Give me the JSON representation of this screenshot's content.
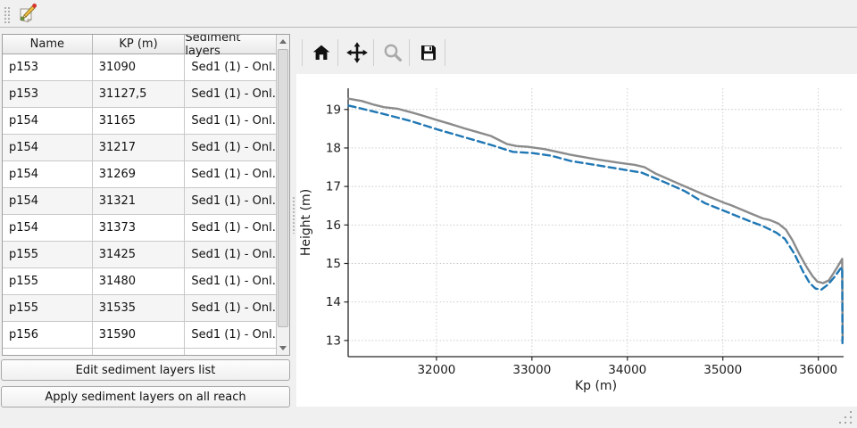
{
  "top_toolbar": {
    "edit_tool_icon": "edit-sediment-layers-icon"
  },
  "left_panel": {
    "table": {
      "columns": [
        "Name",
        "KP (m)",
        "Sediment layers"
      ],
      "rows": [
        {
          "name": "p153",
          "kp": "31090",
          "sediment": "Sed1 (1) - Onl..."
        },
        {
          "name": "p153",
          "kp": "31127,5",
          "sediment": "Sed1 (1) - Onl..."
        },
        {
          "name": "p154",
          "kp": "31165",
          "sediment": "Sed1 (1) - Onl..."
        },
        {
          "name": "p154",
          "kp": "31217",
          "sediment": "Sed1 (1) - Onl..."
        },
        {
          "name": "p154",
          "kp": "31269",
          "sediment": "Sed1 (1) - Onl..."
        },
        {
          "name": "p154",
          "kp": "31321",
          "sediment": "Sed1 (1) - Onl..."
        },
        {
          "name": "p154",
          "kp": "31373",
          "sediment": "Sed1 (1) - Onl..."
        },
        {
          "name": "p155",
          "kp": "31425",
          "sediment": "Sed1 (1) - Onl..."
        },
        {
          "name": "p155",
          "kp": "31480",
          "sediment": "Sed1 (1) - Onl..."
        },
        {
          "name": "p155",
          "kp": "31535",
          "sediment": "Sed1 (1) - Onl..."
        },
        {
          "name": "p156",
          "kp": "31590",
          "sediment": "Sed1 (1) - Onl..."
        }
      ]
    },
    "buttons": {
      "edit": "Edit sediment layers list",
      "apply": "Apply sediment layers on all reach"
    }
  },
  "plot_toolbar": {
    "icons": [
      "home-icon",
      "pan-icon",
      "zoom-icon",
      "save-icon"
    ],
    "disabled_icon": "zoom-icon"
  },
  "chart_data": {
    "type": "line",
    "title": "",
    "xlabel": "Kp (m)",
    "ylabel": "Height (m)",
    "xlim": [
      31075,
      36265
    ],
    "ylim": [
      12.58,
      19.55
    ],
    "xticks": [
      32000,
      33000,
      34000,
      35000,
      36000
    ],
    "yticks": [
      13,
      14,
      15,
      16,
      17,
      18,
      19
    ],
    "grid": true,
    "legend": false,
    "colors": {
      "series1": "#8b8b8b",
      "series2": "#1f77b4",
      "grid": "#c6c6c6",
      "spine": "#262626"
    },
    "series": [
      {
        "name": "height-solid-gray",
        "style": "solid",
        "color": "#8b8b8b",
        "x": [
          31080,
          31220,
          31350,
          31450,
          31590,
          31730,
          31870,
          32010,
          32150,
          32290,
          32430,
          32570,
          32740,
          32840,
          32950,
          33130,
          33410,
          33690,
          33930,
          34080,
          34180,
          34300,
          34530,
          34810,
          35020,
          35080,
          35280,
          35420,
          35490,
          35580,
          35660,
          35730,
          35800,
          35880,
          35940,
          35990,
          36050,
          36110,
          36160,
          36210,
          36250,
          36255
        ],
        "y": [
          19.28,
          19.22,
          19.12,
          19.06,
          19.02,
          18.93,
          18.83,
          18.72,
          18.62,
          18.51,
          18.41,
          18.31,
          18.1,
          18.05,
          18.03,
          17.97,
          17.82,
          17.7,
          17.61,
          17.56,
          17.5,
          17.33,
          17.08,
          16.78,
          16.57,
          16.52,
          16.31,
          16.17,
          16.13,
          16.04,
          15.88,
          15.6,
          15.25,
          14.9,
          14.67,
          14.53,
          14.49,
          14.56,
          14.75,
          14.95,
          15.12,
          13.03
        ]
      },
      {
        "name": "height-dashed-blue",
        "style": "dashed",
        "color": "#1f77b4",
        "x": [
          31080,
          31220,
          31450,
          31730,
          32010,
          32290,
          32570,
          32800,
          33000,
          33200,
          33410,
          33690,
          33930,
          34150,
          34400,
          34600,
          34810,
          35100,
          35280,
          35420,
          35560,
          35650,
          35750,
          35840,
          35910,
          35970,
          36030,
          36100,
          36170,
          36230,
          36250,
          36253
        ],
        "y": [
          19.1,
          19.02,
          18.88,
          18.7,
          18.48,
          18.28,
          18.08,
          17.9,
          17.87,
          17.8,
          17.66,
          17.55,
          17.45,
          17.36,
          17.1,
          16.88,
          16.57,
          16.28,
          16.1,
          15.97,
          15.8,
          15.64,
          15.25,
          14.79,
          14.49,
          14.35,
          14.32,
          14.45,
          14.65,
          14.86,
          14.9,
          12.93
        ]
      }
    ]
  }
}
